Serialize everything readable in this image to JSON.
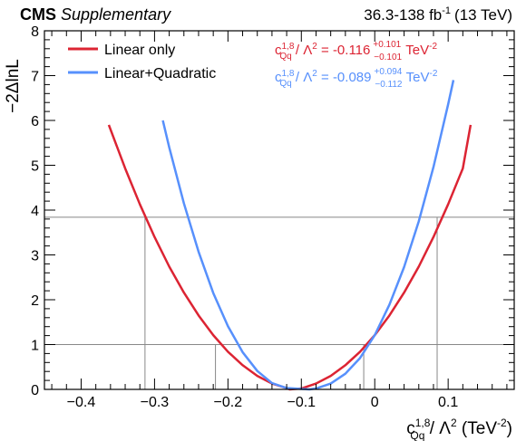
{
  "header": {
    "experiment": "CMS",
    "tag": "Supplementary",
    "lumi_text": "36.3-138 fb",
    "lumi_exp": "-1",
    "energy": "(13 TeV)"
  },
  "chart_data": {
    "type": "line",
    "xlabel": {
      "main": "c",
      "sup": "1,8",
      "sub": "Qq",
      "rest": " / Λ",
      "rest_sup": "2",
      "unit": " (TeV",
      "unit_sup": "-2",
      "unit_close": ")"
    },
    "ylabel": "−2ΔlnL",
    "xlim": [
      -0.45,
      0.19
    ],
    "ylim": [
      0,
      8
    ],
    "xticks": [
      -0.4,
      -0.3,
      -0.2,
      -0.1,
      0,
      0.1
    ],
    "xtick_labels": [
      "−0.4",
      "−0.3",
      "−0.2",
      "−0.1",
      "0",
      "0.1"
    ],
    "yticks": [
      0,
      1,
      2,
      3,
      4,
      5,
      6,
      7,
      8
    ],
    "ytick_labels": [
      "0",
      "1",
      "2",
      "3",
      "4",
      "5",
      "6",
      "7",
      "8"
    ],
    "reference_lines": [
      1.0,
      3.84
    ],
    "series": [
      {
        "name": "Linear only",
        "color": "#dc2433",
        "x": [
          -0.3623,
          -0.34,
          -0.32,
          -0.3,
          -0.28,
          -0.26,
          -0.24,
          -0.22,
          -0.2,
          -0.18,
          -0.16,
          -0.14,
          -0.12,
          -0.116,
          -0.1,
          -0.08,
          -0.06,
          -0.04,
          -0.02,
          0.0,
          0.02,
          0.04,
          0.06,
          0.08,
          0.1,
          0.12,
          0.1306
        ],
        "y": [
          5.9,
          4.93,
          4.13,
          3.4,
          2.74,
          2.16,
          1.65,
          1.21,
          0.84,
          0.54,
          0.3,
          0.13,
          0.03,
          0.0,
          0.02,
          0.13,
          0.3,
          0.54,
          0.84,
          1.21,
          1.65,
          2.16,
          2.74,
          3.4,
          4.13,
          4.93,
          5.9
        ],
        "annotation": {
          "prefix": "c",
          "sup": "1,8",
          "sub": "Qq",
          "mid": " / Λ",
          "mid_sup": "2",
          "value": " = -0.116",
          "up": "+0.101",
          "down": "−0.101",
          "unit": " TeV",
          "unit_sup": "-2"
        }
      },
      {
        "name": "Linear+Quadratic",
        "color": "#5790fc",
        "x": [
          -0.2887,
          -0.28,
          -0.26,
          -0.24,
          -0.22,
          -0.2,
          -0.18,
          -0.16,
          -0.14,
          -0.12,
          -0.1,
          -0.089,
          -0.08,
          -0.06,
          -0.04,
          -0.02,
          0.0,
          0.02,
          0.04,
          0.06,
          0.08,
          0.1,
          0.1072
        ],
        "y": [
          6.0,
          5.4,
          4.15,
          3.07,
          2.15,
          1.41,
          0.83,
          0.41,
          0.14,
          0.03,
          0.01,
          0.0,
          0.02,
          0.13,
          0.35,
          0.7,
          1.21,
          1.89,
          2.73,
          3.75,
          4.96,
          6.36,
          6.9
        ],
        "annotation": {
          "prefix": "c",
          "sup": "1,8",
          "sub": "Qq",
          "mid": " / Λ",
          "mid_sup": "2",
          "value": " = -0.089",
          "up": "+0.094",
          "down": "−0.112",
          "unit": " TeV",
          "unit_sup": "-2"
        }
      }
    ],
    "crossings": [
      {
        "x": -0.313,
        "y": 3.84,
        "color": "#dc2433"
      },
      {
        "x": -0.217,
        "y": 1.0,
        "color": "#dc2433"
      },
      {
        "x": -0.015,
        "y": 1.0,
        "color": "#dc2433"
      },
      {
        "x": 0.085,
        "y": 3.84,
        "color": "#dc2433"
      }
    ],
    "legend": {
      "position": "top-left"
    },
    "grid": false
  }
}
